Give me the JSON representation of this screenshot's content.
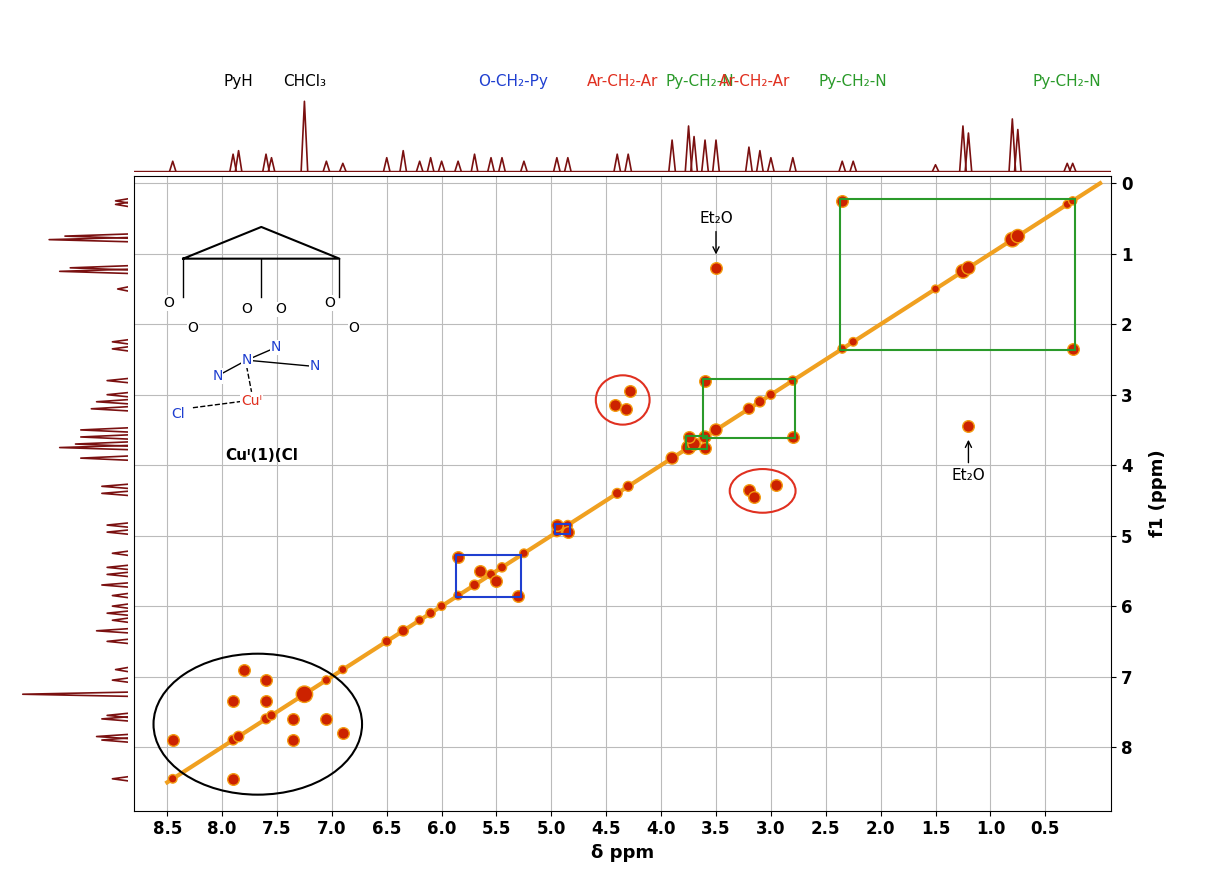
{
  "chart_data": {
    "type": "cosy",
    "x_label": "δ ppm",
    "y_label": "f1 (ppm)",
    "xlim": [
      8.8,
      -0.1
    ],
    "ylim": [
      8.9,
      -0.1
    ],
    "xticks": [
      8.5,
      8.0,
      7.5,
      7.0,
      6.5,
      6.0,
      5.5,
      5.0,
      4.5,
      4.0,
      3.5,
      3.0,
      2.5,
      2.0,
      1.5,
      1.0,
      0.5
    ],
    "yticks": [
      0,
      1,
      2,
      3,
      4,
      5,
      6,
      7,
      8
    ],
    "grid": true,
    "color": "#7a1010",
    "diagonal": [
      8.5,
      0.0
    ],
    "peaks": {
      "ppm": [
        8.45,
        7.9,
        7.85,
        7.6,
        7.55,
        7.25,
        7.05,
        6.9,
        6.5,
        6.35,
        6.2,
        6.1,
        6.0,
        5.85,
        5.7,
        5.55,
        5.45,
        5.25,
        4.95,
        4.85,
        4.4,
        4.3,
        3.9,
        3.75,
        3.7,
        3.6,
        3.5,
        3.2,
        3.1,
        3.0,
        2.8,
        2.35,
        2.25,
        1.5,
        1.25,
        1.2,
        0.8,
        0.75,
        0.3,
        0.25
      ],
      "height": [
        15,
        25,
        30,
        25,
        20,
        100,
        15,
        12,
        20,
        30,
        15,
        20,
        15,
        15,
        25,
        20,
        20,
        15,
        20,
        20,
        25,
        25,
        45,
        65,
        50,
        45,
        45,
        35,
        30,
        20,
        20,
        15,
        15,
        10,
        65,
        55,
        75,
        60,
        12,
        12
      ]
    },
    "cross_peaks": [
      {
        "group": "PyH",
        "color": "#000000",
        "marker": "ellipse",
        "x": [
          8.45,
          7.9,
          7.9,
          7.35,
          7.6,
          7.35,
          7.8,
          6.9,
          7.6,
          7.05
        ],
        "y": [
          7.9,
          8.45,
          7.35,
          7.9,
          7.35,
          7.6,
          6.9,
          7.8,
          7.05,
          7.6
        ]
      },
      {
        "group": "O-CH₂-Py",
        "color": "#1f3fd0",
        "marker": "box",
        "x": [
          5.85,
          5.3,
          5.65,
          5.5
        ],
        "y": [
          5.3,
          5.85,
          5.5,
          5.65
        ]
      },
      {
        "group": "O-CH₂-Py",
        "color": "#1f3fd0",
        "marker": "box",
        "x": [
          4.95,
          4.85
        ],
        "y": [
          4.85,
          4.95
        ]
      },
      {
        "group": "Ar-CH₂-Ar",
        "color": "#e03020",
        "marker": "ellipse",
        "x": [
          4.42,
          4.32,
          4.28
        ],
        "y": [
          3.15,
          3.2,
          2.95
        ]
      },
      {
        "group": "Ar-CH₂-Ar",
        "color": "#e03020",
        "marker": "ellipse",
        "x": [
          3.2,
          3.15,
          2.95
        ],
        "y": [
          4.35,
          4.45,
          4.28
        ]
      },
      {
        "group": "Py-CH₂-N",
        "color": "#2a9a2a",
        "marker": "box",
        "x": [
          2.35,
          0.25
        ],
        "y": [
          0.25,
          2.35
        ]
      },
      {
        "group": "Py-CH₂-N",
        "color": "#2a9a2a",
        "marker": "box",
        "x": [
          3.6,
          2.8
        ],
        "y": [
          2.8,
          3.6
        ]
      },
      {
        "group": "Py-CH₂-N",
        "color": "#2a9a2a",
        "marker": "box",
        "x": [
          3.75,
          3.6
        ],
        "y": [
          3.6,
          3.75
        ]
      },
      {
        "group": "Et₂O",
        "color": "#000000",
        "marker": "arrow_up",
        "x": [
          3.5
        ],
        "y": [
          1.2
        ]
      },
      {
        "group": "Et₂O",
        "color": "#000000",
        "marker": "arrow_down",
        "x": [
          1.2
        ],
        "y": [
          3.45
        ]
      }
    ],
    "trace_labels": [
      {
        "text": "PyH",
        "ppm": 7.85,
        "color": "#000000"
      },
      {
        "text": "CHCl₃",
        "ppm": 7.25,
        "color": "#000000"
      },
      {
        "text": "O-CH₂-Py",
        "ppm": 5.35,
        "color": "#1f3fd0"
      },
      {
        "text": "Ar-CH₂-Ar",
        "ppm": 4.35,
        "color": "#e03020"
      },
      {
        "text": "Py-CH₂-N",
        "ppm": 3.65,
        "color": "#2a9a2a"
      },
      {
        "text": "Ar-CH₂-Ar",
        "ppm": 3.15,
        "color": "#e03020"
      },
      {
        "text": "Py-CH₂-N",
        "ppm": 2.25,
        "color": "#2a9a2a"
      },
      {
        "text": "Py-CH₂-N",
        "ppm": 0.3,
        "color": "#2a9a2a"
      }
    ],
    "structure": {
      "caption": "Cuᴵ(1)(Cl",
      "atoms": [
        "O",
        "O",
        "O",
        "O",
        "O",
        "O",
        "N",
        "N",
        "N",
        "N",
        "Cl",
        "Cuᴵ"
      ]
    }
  }
}
